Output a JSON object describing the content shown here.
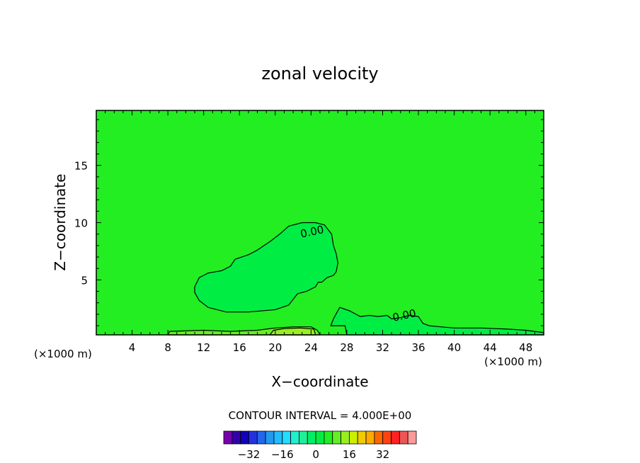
{
  "chart_data": {
    "type": "contour",
    "title": "zonal velocity",
    "xlabel": "X−coordinate",
    "ylabel": "Z−coordinate",
    "x_unit_left": "(×1000 m)",
    "x_unit_right": "(×1000 m)",
    "xlim": [
      0,
      50
    ],
    "ylim": [
      0.2,
      19.8
    ],
    "x_ticks": [
      4,
      8,
      12,
      16,
      20,
      24,
      28,
      32,
      36,
      40,
      44,
      48
    ],
    "y_ticks": [
      5,
      10,
      15
    ],
    "background_color": "#22ee22",
    "contour_interval_text": "CONTOUR INTERVAL = 4.000E+00",
    "contour_labels": [
      {
        "text": "0.00",
        "x": 24.2,
        "y": 8.9
      },
      {
        "text": "0.00",
        "x": 34.5,
        "y": 1.6
      }
    ],
    "regions": [
      {
        "name": "negative-core",
        "color": "#00ee44",
        "outline": [
          [
            11,
            4.4
          ],
          [
            11.5,
            5.2
          ],
          [
            12.5,
            5.6
          ],
          [
            14,
            5.8
          ],
          [
            15,
            6.2
          ],
          [
            15.5,
            6.8
          ],
          [
            17,
            7.2
          ],
          [
            18,
            7.6
          ],
          [
            19.5,
            8.4
          ],
          [
            20.5,
            9.0
          ],
          [
            21.5,
            9.7
          ],
          [
            23,
            10.0
          ],
          [
            24.5,
            10.0
          ],
          [
            25.5,
            9.8
          ],
          [
            26.3,
            9.0
          ],
          [
            26.5,
            8.0
          ],
          [
            26.8,
            7.3
          ],
          [
            27,
            6.5
          ],
          [
            26.8,
            5.7
          ],
          [
            26.5,
            5.4
          ],
          [
            25.8,
            5.2
          ],
          [
            25.2,
            4.8
          ],
          [
            24.8,
            4.8
          ],
          [
            24.5,
            4.4
          ],
          [
            23.5,
            4.0
          ],
          [
            22.5,
            3.8
          ],
          [
            21.5,
            2.8
          ],
          [
            20,
            2.4
          ],
          [
            17,
            2.2
          ],
          [
            14.5,
            2.2
          ],
          [
            12.5,
            2.6
          ],
          [
            11.5,
            3.2
          ],
          [
            11,
            3.9
          ]
        ]
      },
      {
        "name": "negative-near-surface",
        "color": "#00ee44",
        "outline": [
          [
            27.2,
            2.6
          ],
          [
            28.3,
            2.3
          ],
          [
            29.5,
            1.8
          ],
          [
            30.5,
            1.9
          ],
          [
            31.5,
            1.8
          ],
          [
            32.5,
            1.9
          ],
          [
            33,
            1.6
          ],
          [
            34,
            1.7
          ],
          [
            35,
            1.9
          ],
          [
            36,
            1.8
          ],
          [
            36.5,
            1.2
          ],
          [
            37.2,
            1.0
          ],
          [
            38.5,
            0.9
          ],
          [
            40,
            0.8
          ],
          [
            43,
            0.8
          ],
          [
            46,
            0.7
          ],
          [
            48,
            0.6
          ],
          [
            50,
            0.4
          ],
          [
            50,
            0.2
          ],
          [
            28,
            0.2
          ],
          [
            27.8,
            1.0
          ],
          [
            26.2,
            1.0
          ],
          [
            26.5,
            1.6
          ]
        ]
      },
      {
        "name": "weak-positive-surface",
        "color": "#66ee22",
        "outline": [
          [
            8,
            0.2
          ],
          [
            8.2,
            0.5
          ],
          [
            12,
            0.6
          ],
          [
            15,
            0.5
          ],
          [
            18,
            0.6
          ],
          [
            20,
            0.8
          ],
          [
            22,
            0.9
          ],
          [
            24,
            0.9
          ],
          [
            24.7,
            0.6
          ],
          [
            25,
            0.2
          ]
        ]
      },
      {
        "name": "stronger-positive-surface",
        "color": "#99ee22",
        "outline": [
          [
            19.4,
            0.2
          ],
          [
            19.8,
            0.6
          ],
          [
            21,
            0.75
          ],
          [
            22.8,
            0.8
          ],
          [
            24.3,
            0.7
          ],
          [
            24.5,
            0.2
          ]
        ]
      }
    ],
    "colorbar": {
      "colors": [
        "#7700aa",
        "#3300aa",
        "#1100bb",
        "#2233dd",
        "#2266ee",
        "#2299ee",
        "#22bbff",
        "#22ddff",
        "#22eecc",
        "#22ee99",
        "#00ee66",
        "#00ee44",
        "#22ee22",
        "#66ee22",
        "#99ee22",
        "#ccee00",
        "#eecc00",
        "#ffaa00",
        "#ff6600",
        "#ff4411",
        "#ff2222",
        "#ee5555",
        "#ff9999"
      ],
      "tick_labels": [
        "−32",
        "−16",
        "0",
        "16",
        "32"
      ],
      "tick_values": [
        -32,
        -16,
        0,
        16,
        32
      ],
      "vmin": -44,
      "vmax": 48
    }
  }
}
